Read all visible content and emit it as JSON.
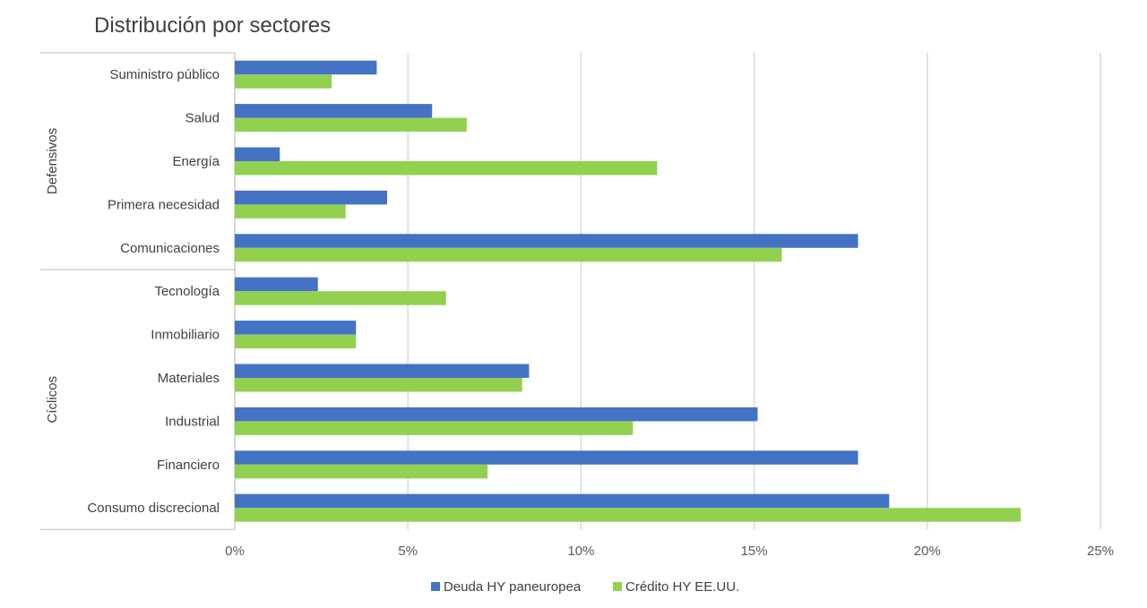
{
  "chart_data": {
    "type": "bar",
    "orientation": "horizontal",
    "title": "Distribución por sectores",
    "xlabel": "",
    "ylabel": "",
    "xlim": [
      0,
      25
    ],
    "x_ticks": [
      "0%",
      "5%",
      "10%",
      "15%",
      "20%",
      "25%"
    ],
    "grid": true,
    "legend_position": "bottom",
    "categories": [
      "Suministro público",
      "Salud",
      "Energía",
      "Primera necesidad",
      "Comunicaciones",
      "Tecnología",
      "Inmobiliario",
      "Materiales",
      "Industrial",
      "Financiero",
      "Consumo discrecional"
    ],
    "groups": [
      {
        "label": "Defensivos",
        "categories": [
          "Suministro público",
          "Salud",
          "Energía",
          "Primera necesidad",
          "Comunicaciones"
        ]
      },
      {
        "label": "Cíclicos",
        "categories": [
          "Tecnología",
          "Inmobiliario",
          "Materiales",
          "Industrial",
          "Financiero",
          "Consumo discrecional"
        ]
      }
    ],
    "series": [
      {
        "name": "Deuda HY paneuropea",
        "color": "#4472c4",
        "values": [
          4.1,
          5.7,
          1.3,
          4.4,
          18.0,
          2.4,
          3.5,
          8.5,
          15.1,
          18.0,
          18.9
        ]
      },
      {
        "name": "Crédito HY EE.UU.",
        "color": "#92d050",
        "values": [
          2.8,
          6.7,
          12.2,
          3.2,
          15.8,
          6.1,
          3.5,
          8.3,
          11.5,
          7.3,
          22.7
        ]
      }
    ]
  }
}
